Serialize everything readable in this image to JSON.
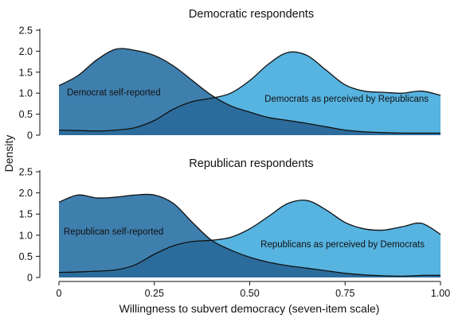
{
  "figure": {
    "xlabel": "Willingness to subvert democracy (seven-item scale)",
    "ylabel": "Density",
    "colors": {
      "self": "#3f7fae",
      "perceived": "#57b3e0",
      "overlap": "#2c6c9c",
      "outline": "#111111"
    }
  },
  "chart_data": [
    {
      "type": "area",
      "title": "Democratic respondents",
      "xlim": [
        0,
        1
      ],
      "ylim": [
        0,
        2.5
      ],
      "xticks": [
        0,
        0.25,
        0.5,
        0.75,
        1.0
      ],
      "xtick_labels": [
        "0",
        "0.25",
        "0.50",
        "0.75",
        "1.00"
      ],
      "yticks": [
        0,
        0.5,
        1.0,
        1.5,
        2.0,
        2.5
      ],
      "ytick_labels": [
        "0",
        "0.5",
        "1.0",
        "1.5",
        "2.0",
        "2.5"
      ],
      "x": [
        0,
        0.05,
        0.1,
        0.15,
        0.2,
        0.25,
        0.3,
        0.35,
        0.4,
        0.45,
        0.5,
        0.55,
        0.6,
        0.65,
        0.7,
        0.75,
        0.8,
        0.85,
        0.9,
        0.95,
        1.0
      ],
      "series": [
        {
          "name": "Democrat self-reported",
          "role": "self",
          "values": [
            1.18,
            1.42,
            1.8,
            2.05,
            2.02,
            1.9,
            1.65,
            1.3,
            0.95,
            0.7,
            0.55,
            0.42,
            0.35,
            0.28,
            0.2,
            0.12,
            0.08,
            0.06,
            0.05,
            0.05,
            0.05
          ]
        },
        {
          "name": "Democrats as perceived by Republicans",
          "role": "perceived",
          "values": [
            0.12,
            0.11,
            0.1,
            0.12,
            0.18,
            0.35,
            0.62,
            0.8,
            0.88,
            1.0,
            1.3,
            1.7,
            1.97,
            1.9,
            1.55,
            1.2,
            1.05,
            1.02,
            1.0,
            1.05,
            0.95
          ]
        }
      ]
    },
    {
      "type": "area",
      "title": "Republican respondents",
      "xlim": [
        0,
        1
      ],
      "ylim": [
        0,
        2.5
      ],
      "xticks": [
        0,
        0.25,
        0.5,
        0.75,
        1.0
      ],
      "xtick_labels": [
        "0",
        "0.25",
        "0.50",
        "0.75",
        "1.00"
      ],
      "yticks": [
        0,
        0.5,
        1.0,
        1.5,
        2.0,
        2.5
      ],
      "ytick_labels": [
        "0",
        "0.5",
        "1.0",
        "1.5",
        "2.0",
        "2.5"
      ],
      "x": [
        0,
        0.05,
        0.1,
        0.15,
        0.2,
        0.25,
        0.3,
        0.35,
        0.4,
        0.45,
        0.5,
        0.55,
        0.6,
        0.65,
        0.7,
        0.75,
        0.8,
        0.85,
        0.9,
        0.95,
        1.0
      ],
      "series": [
        {
          "name": "Republican self-reported",
          "role": "self",
          "values": [
            1.78,
            1.95,
            1.88,
            1.9,
            1.95,
            1.95,
            1.75,
            1.3,
            0.88,
            0.65,
            0.48,
            0.36,
            0.28,
            0.22,
            0.16,
            0.1,
            0.06,
            0.04,
            0.03,
            0.05,
            0.05
          ]
        },
        {
          "name": "Republicans as perceived by Democrats",
          "role": "perceived",
          "values": [
            0.12,
            0.13,
            0.15,
            0.18,
            0.3,
            0.55,
            0.75,
            0.85,
            0.88,
            0.95,
            1.15,
            1.45,
            1.75,
            1.82,
            1.6,
            1.3,
            1.15,
            1.12,
            1.2,
            1.28,
            1.02
          ]
        }
      ]
    }
  ]
}
